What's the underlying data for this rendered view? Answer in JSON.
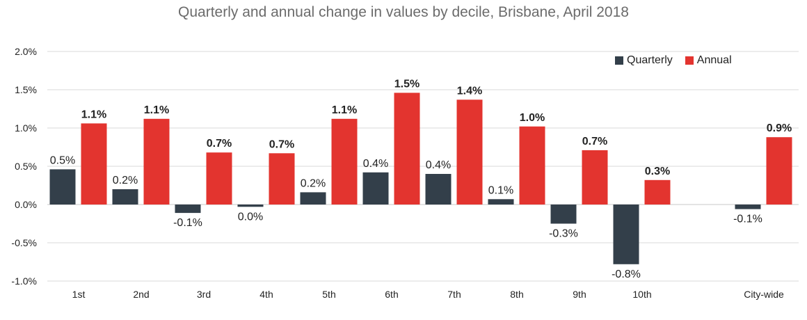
{
  "chart_data": {
    "type": "bar",
    "title": "Quarterly and annual change in values by decile, Brisbane, April 2018",
    "categories": [
      "1st",
      "2nd",
      "3rd",
      "4th",
      "5th",
      "6th",
      "7th",
      "8th",
      "9th",
      "10th",
      "City-wide"
    ],
    "series": [
      {
        "name": "Quarterly",
        "color": "#333f4a",
        "values": [
          0.46,
          0.2,
          -0.11,
          -0.03,
          0.16,
          0.42,
          0.4,
          0.07,
          -0.25,
          -0.78,
          -0.06
        ],
        "labels": [
          "0.5%",
          "0.2%",
          "-0.1%",
          "0.0%",
          "0.2%",
          "0.4%",
          "0.4%",
          "0.1%",
          "-0.3%",
          "-0.8%",
          "-0.1%"
        ]
      },
      {
        "name": "Annual",
        "color": "#e3342f",
        "values": [
          1.06,
          1.12,
          0.68,
          0.67,
          1.12,
          1.46,
          1.37,
          1.02,
          0.71,
          0.32,
          0.88
        ],
        "labels": [
          "1.1%",
          "1.1%",
          "0.7%",
          "0.7%",
          "1.1%",
          "1.5%",
          "1.4%",
          "1.0%",
          "0.7%",
          "0.3%",
          "0.9%"
        ]
      }
    ],
    "ylim": [
      -1.0,
      2.0
    ],
    "yticks": [
      "-1.0%",
      "-0.5%",
      "0.0%",
      "0.5%",
      "1.0%",
      "1.5%",
      "2.0%"
    ],
    "ytick_values": [
      -1.0,
      -0.5,
      0.0,
      0.5,
      1.0,
      1.5,
      2.0
    ],
    "grid": true,
    "legend_position": "top-right",
    "xlabel": "",
    "ylabel": ""
  }
}
